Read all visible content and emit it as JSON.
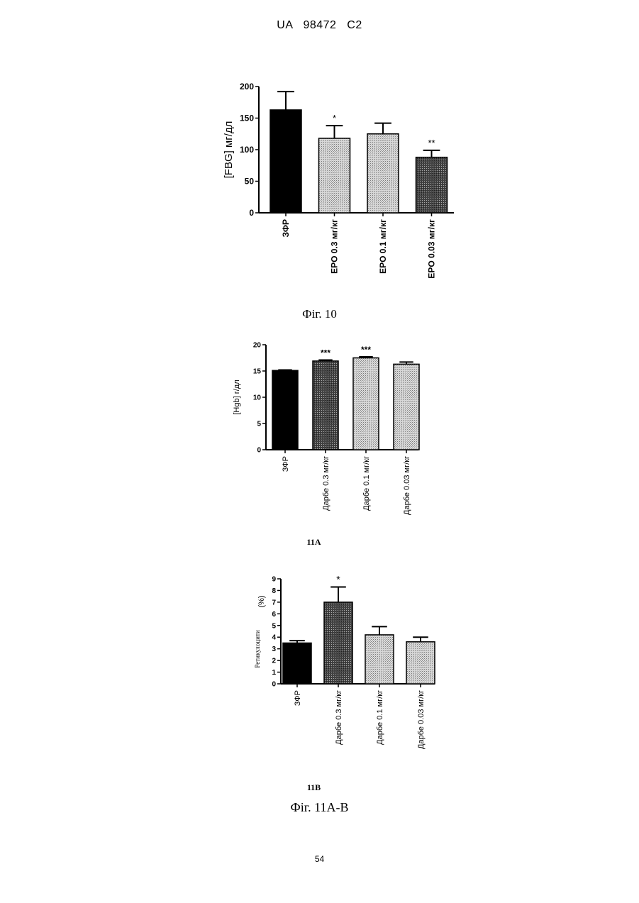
{
  "header": {
    "text": "UA   98472   C2"
  },
  "captions": {
    "fig10": "Фіг. 10",
    "fig11a_sub": "11A",
    "fig11b_sub": "11B",
    "fig11": "Фіг. 11А-В"
  },
  "page_number": "54",
  "colors": {
    "black": "#000000",
    "dark_hatch": "#3a3a3a",
    "light_hatch": "#bdbdbd"
  },
  "chart_data": [
    {
      "id": "fig10",
      "type": "bar",
      "ylabel": "[FBG] мг/дл",
      "ylim": [
        0,
        200
      ],
      "yticks": [
        "0",
        "50",
        "100",
        "150",
        "200"
      ],
      "categories": [
        "ЗФР",
        "EPO 0.3 мг/кг",
        "EPO 0.1 мг/кг",
        "EPO 0.03 мг/кг"
      ],
      "values": [
        163,
        118,
        125,
        88
      ],
      "errors": [
        29,
        20,
        17,
        11
      ],
      "annotations": [
        "",
        "*",
        "",
        "**"
      ],
      "fills": [
        "black",
        "light",
        "light",
        "dark"
      ]
    },
    {
      "id": "fig11a",
      "type": "bar",
      "ylabel": "[Hgb] г/дл",
      "ylim": [
        0,
        20
      ],
      "yticks": [
        "0",
        "5",
        "10",
        "15",
        "20"
      ],
      "categories": [
        "ЗФР",
        "Дарбе 0.3 мг/кг",
        "Дарбе 0.1 мг/кг",
        "Дарбе 0.03 мг/кг"
      ],
      "values": [
        15.1,
        16.9,
        17.5,
        16.3
      ],
      "errors": [
        0.1,
        0.2,
        0.2,
        0.4
      ],
      "annotations": [
        "",
        "***",
        "***",
        ""
      ],
      "fills": [
        "black",
        "dark",
        "light",
        "light"
      ]
    },
    {
      "id": "fig11b",
      "type": "bar",
      "ylabel_left": "Ретикулоцити",
      "ylabel_right": "(%)",
      "ylim": [
        0,
        9
      ],
      "yticks": [
        "0",
        "1",
        "2",
        "3",
        "4",
        "5",
        "6",
        "7",
        "8",
        "9"
      ],
      "categories": [
        "ЗФР",
        "Дарбе 0.3 мг/кг",
        "Дарбе 0.1 мг/кг",
        "Дарбе 0.03 мг/кг"
      ],
      "values": [
        3.5,
        7.0,
        4.2,
        3.6
      ],
      "errors": [
        0.2,
        1.3,
        0.7,
        0.4
      ],
      "annotations": [
        "",
        "*",
        "",
        ""
      ],
      "fills": [
        "black",
        "dark",
        "light",
        "light"
      ]
    }
  ]
}
